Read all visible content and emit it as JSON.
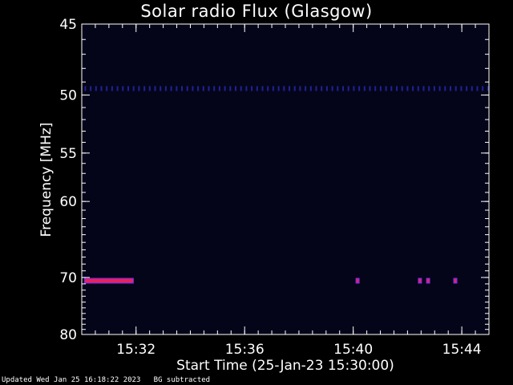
{
  "title": "Solar radio Flux (Glasgow)",
  "footer": {
    "updated": "Updated Wed Jan 25 16:18:22 2023",
    "note": "BG subtracted"
  },
  "colors": {
    "background": "#000000",
    "plot_bg": "#05051a",
    "band": "#1f2299",
    "hot": "#e8225a",
    "axis": "#ffffff"
  },
  "chart_data": {
    "type": "heatmap",
    "title": "Solar radio Flux (Glasgow)",
    "xlabel": "Start Time (25-Jan-23 15:30:00)",
    "ylabel": "Frequency [MHz]",
    "x_range_minutes": [
      0,
      15
    ],
    "x_ticks": [
      {
        "min": 2,
        "label": "15:32"
      },
      {
        "min": 6,
        "label": "15:36"
      },
      {
        "min": 10,
        "label": "15:40"
      },
      {
        "min": 14,
        "label": "15:44"
      }
    ],
    "y_range_mhz": [
      45,
      80
    ],
    "y_ticks": [
      {
        "mhz": 45,
        "label": "45"
      },
      {
        "mhz": 50,
        "label": "50"
      },
      {
        "mhz": 55,
        "label": "55"
      },
      {
        "mhz": 60,
        "label": "60"
      },
      {
        "mhz": 70,
        "label": "70"
      },
      {
        "mhz": 80,
        "label": "80"
      }
    ],
    "features": [
      {
        "name": "band near 49.5 MHz",
        "mhz": 49.5,
        "x_start_min": 0.1,
        "x_end_min": 15,
        "intensity": "low"
      },
      {
        "name": "emission near 70.5 MHz",
        "mhz": 70.5,
        "x_start_min": 0.1,
        "x_end_min": 1.9,
        "intensity": "high"
      },
      {
        "name": "spike",
        "mhz": 70.5,
        "x_start_min": 10.1,
        "x_end_min": 10.2,
        "intensity": "high"
      },
      {
        "name": "spike",
        "mhz": 70.5,
        "x_start_min": 12.4,
        "x_end_min": 12.5,
        "intensity": "high"
      },
      {
        "name": "spike",
        "mhz": 70.5,
        "x_start_min": 12.7,
        "x_end_min": 12.8,
        "intensity": "high"
      },
      {
        "name": "spike",
        "mhz": 70.5,
        "x_start_min": 13.7,
        "x_end_min": 13.8,
        "intensity": "high"
      }
    ]
  }
}
